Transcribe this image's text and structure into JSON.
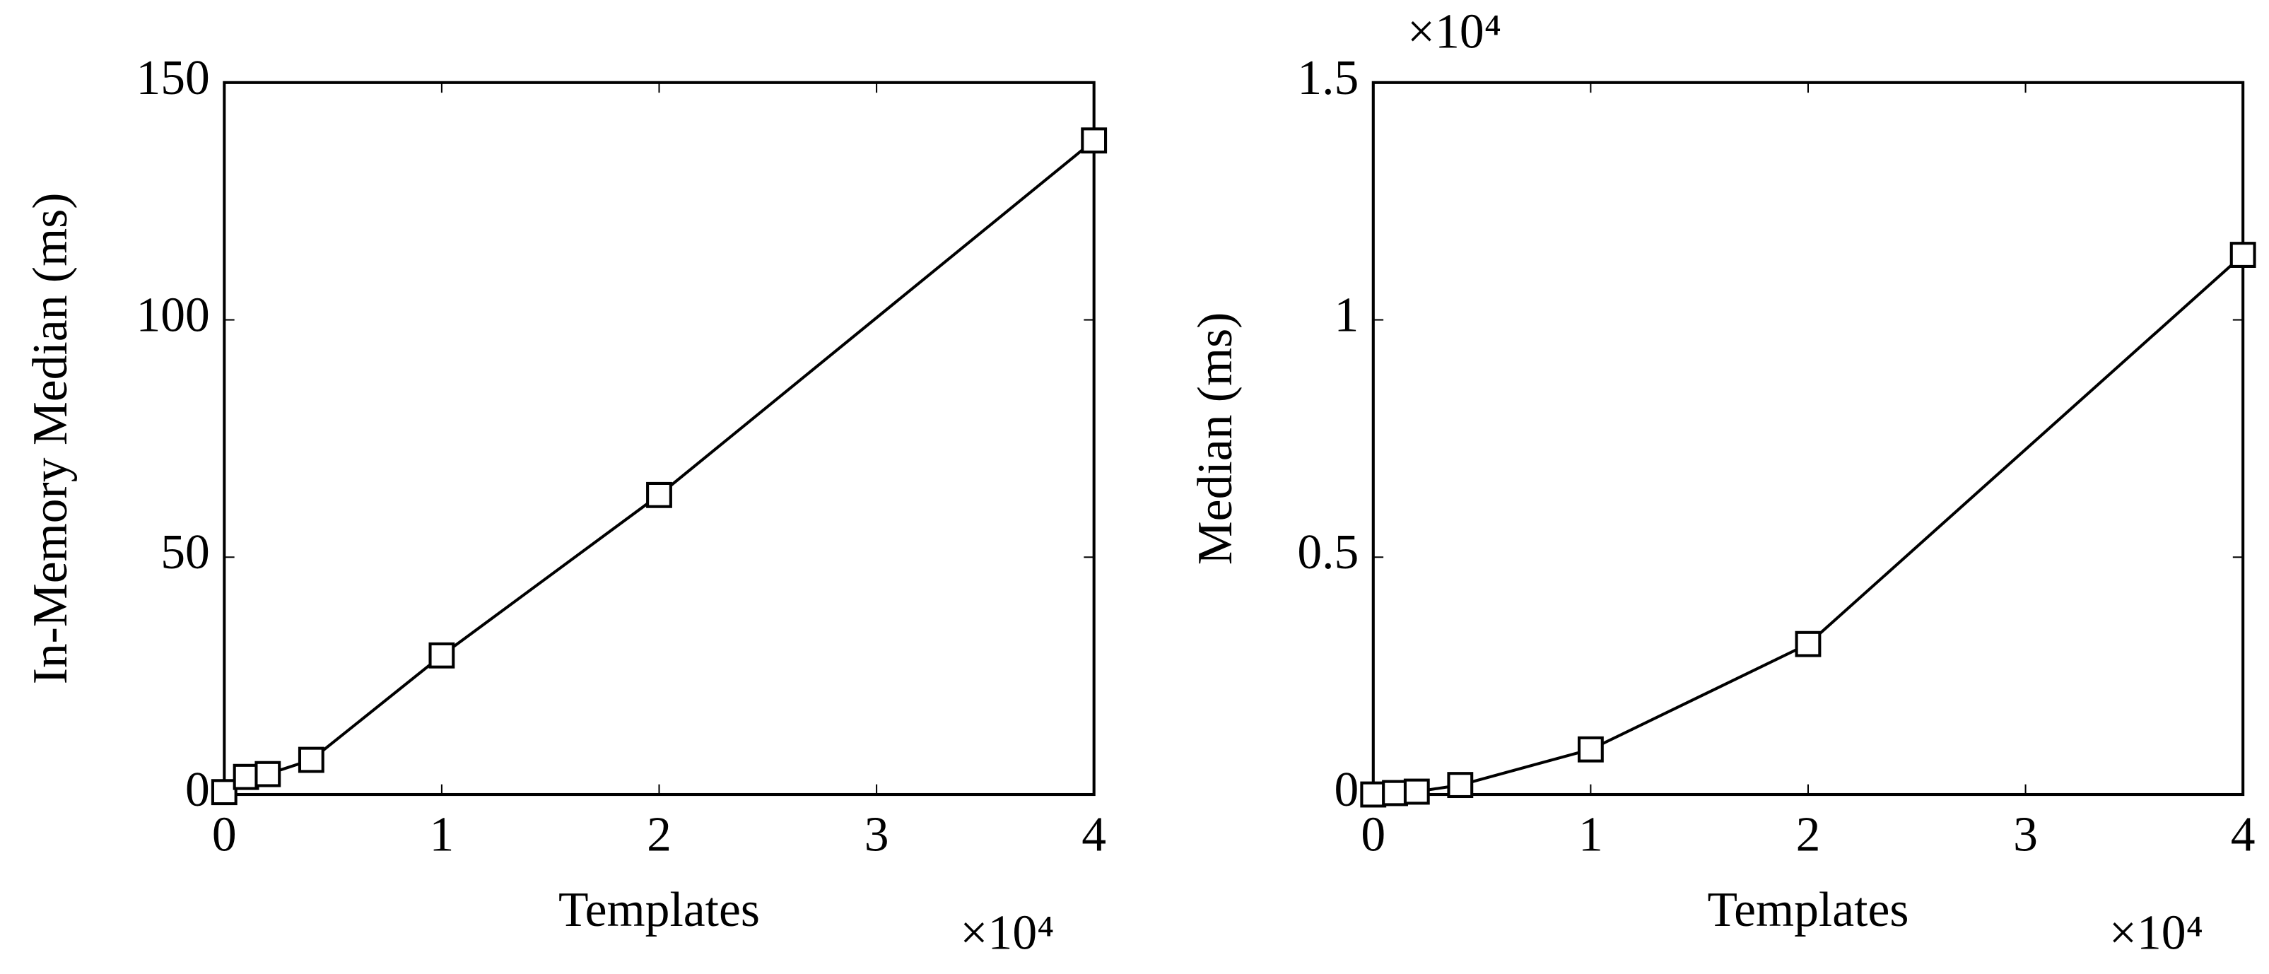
{
  "chart_data": [
    {
      "type": "line",
      "xlabel": "Templates",
      "ylabel": "In-Memory Median (ms)",
      "x": [
        0,
        0.1,
        0.2,
        0.4,
        1,
        2,
        4
      ],
      "series": [
        {
          "color": "#000000",
          "marker": "square",
          "values": [
            0.5,
            3.7,
            4.3,
            7.3,
            29.3,
            63.1,
            137.8
          ]
        }
      ],
      "xlim": [
        0,
        4
      ],
      "xticks": [
        0,
        1,
        2,
        3,
        4
      ],
      "x_multiplier": "×10⁴",
      "ylim": [
        0,
        150
      ],
      "yticks": [
        0,
        50,
        100,
        150
      ]
    },
    {
      "type": "line",
      "xlabel": "Templates",
      "ylabel": "Median (ms)",
      "x": [
        0,
        0.1,
        0.2,
        0.4,
        1,
        2,
        4
      ],
      "series": [
        {
          "color": "#000000",
          "marker": "square",
          "values": [
            0,
            0.003,
            0.006,
            0.02,
            0.095,
            0.317,
            1.137
          ]
        }
      ],
      "xlim": [
        0,
        4
      ],
      "xticks": [
        0,
        1,
        2,
        3,
        4
      ],
      "x_multiplier": "×10⁴",
      "ylim": [
        0,
        1.5
      ],
      "yticks": [
        0,
        0.5,
        1,
        1.5
      ],
      "y_multiplier": "×10⁴"
    }
  ]
}
